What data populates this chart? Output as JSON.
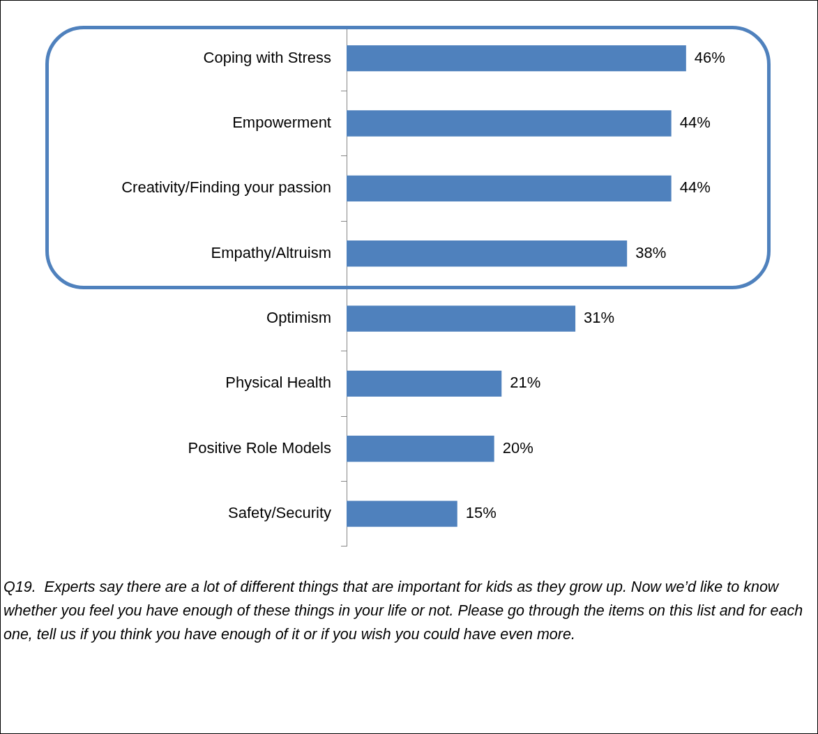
{
  "chart_data": {
    "type": "bar",
    "orientation": "horizontal",
    "categories": [
      "Coping with Stress",
      "Empowerment",
      "Creativity/Finding your passion",
      "Empathy/Altruism",
      "Optimism",
      "Physical Health",
      "Positive Role Models",
      "Safety/Security"
    ],
    "values": [
      46,
      44,
      44,
      38,
      31,
      21,
      20,
      15
    ],
    "value_labels": [
      "46%",
      "44%",
      "44%",
      "38%",
      "31%",
      "21%",
      "20%",
      "15%"
    ],
    "color": "#4f81bd",
    "annotations": [
      "Q19.  Experts say there are a lot of different things that are important for kids as they grow up. Now we’d like to know whether you feel you have enough of these things in your life or not. Please go through the items on this list and for each one, tell us if you think you have enough of it or if you wish you could have even more."
    ]
  }
}
